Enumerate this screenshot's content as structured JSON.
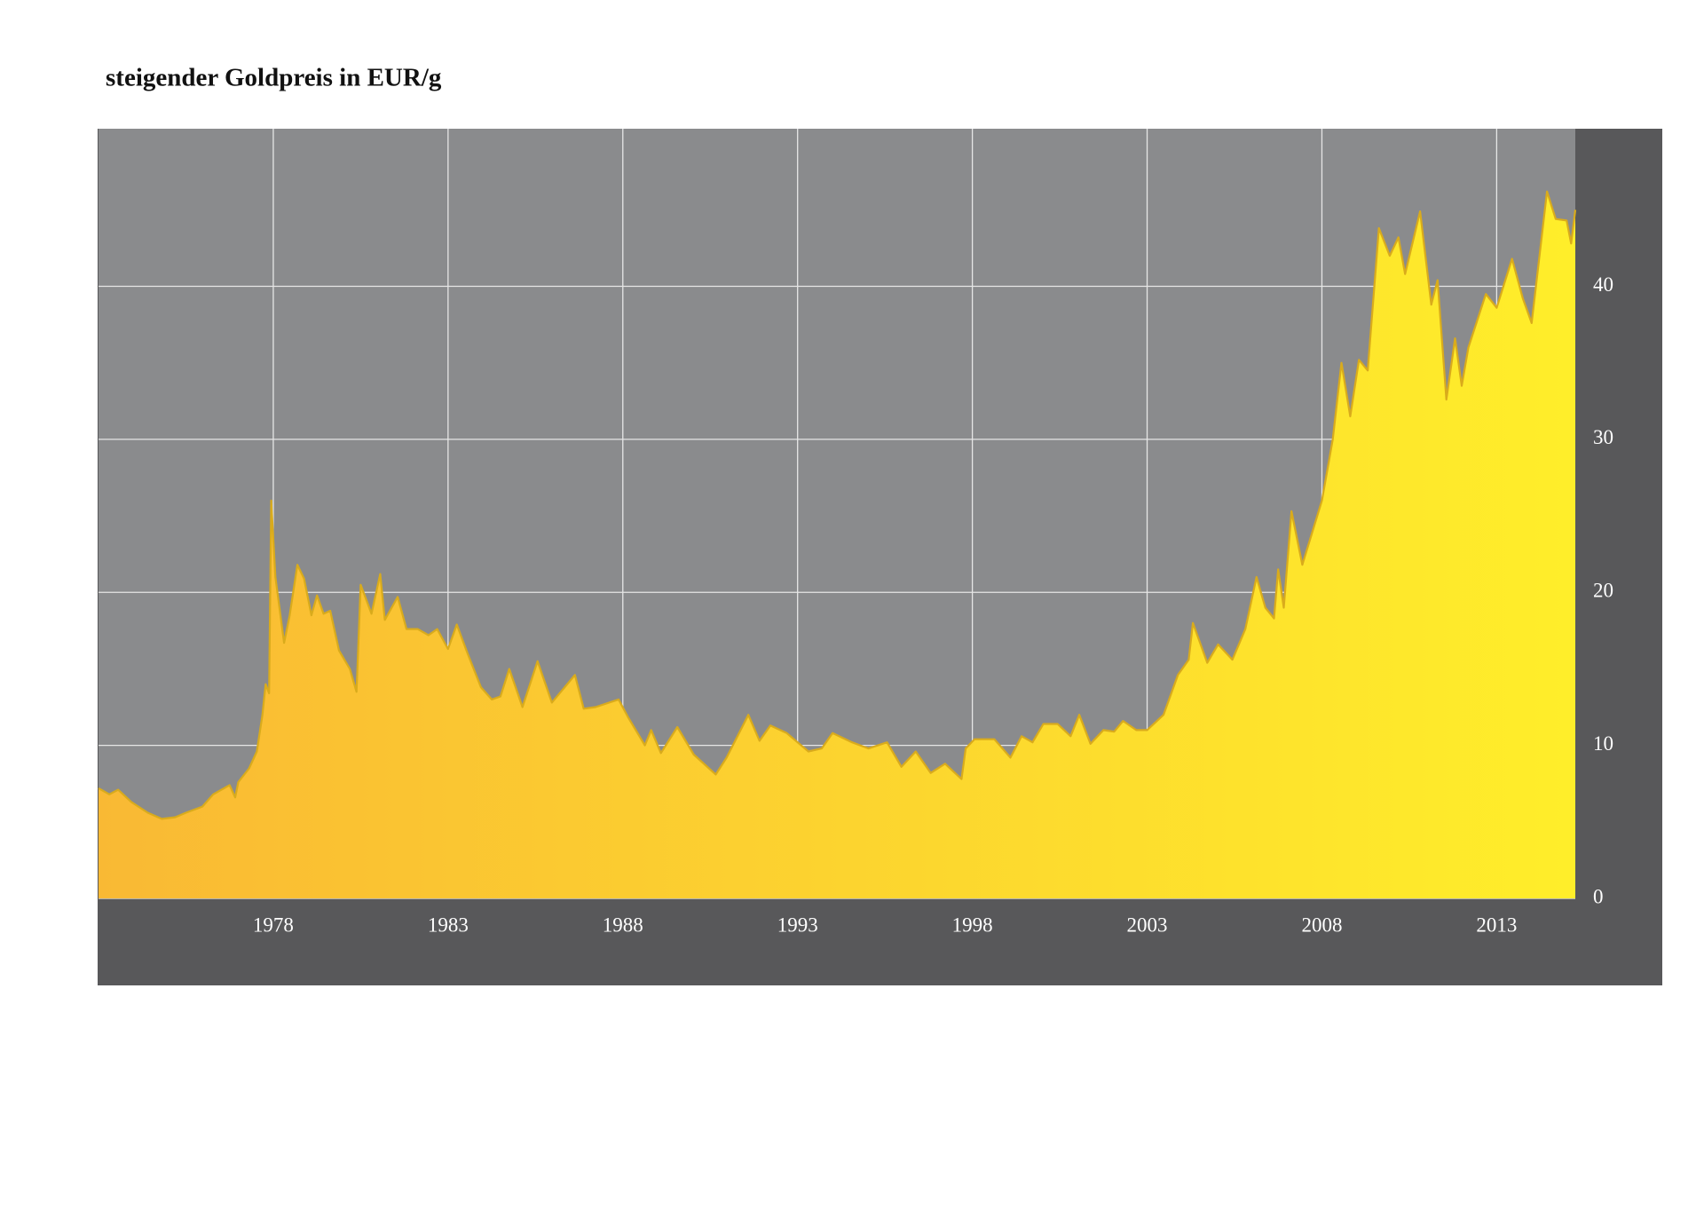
{
  "chart_data": {
    "type": "area",
    "title": "steigender Goldpreis in EUR/g",
    "x": [
      1973.0,
      1973.31,
      1973.56,
      1973.94,
      1974.41,
      1974.81,
      1975.19,
      1975.5,
      1975.97,
      1976.28,
      1976.75,
      1976.91,
      1977.0,
      1977.31,
      1977.53,
      1977.69,
      1977.78,
      1977.88,
      1977.94,
      1978.06,
      1978.31,
      1978.47,
      1978.69,
      1978.88,
      1979.09,
      1979.25,
      1979.44,
      1979.63,
      1979.88,
      1980.19,
      1980.38,
      1980.5,
      1980.81,
      1981.06,
      1981.19,
      1981.56,
      1981.81,
      1982.13,
      1982.44,
      1982.69,
      1983.0,
      1983.25,
      1983.56,
      1983.94,
      1984.25,
      1984.5,
      1984.75,
      1985.13,
      1985.56,
      1985.97,
      1986.63,
      1986.88,
      1987.22,
      1987.88,
      1988.16,
      1988.63,
      1988.81,
      1989.09,
      1989.56,
      1990.03,
      1990.66,
      1990.97,
      1991.59,
      1991.91,
      1992.22,
      1992.69,
      1993.0,
      1993.31,
      1993.69,
      1994.0,
      1994.56,
      1995.03,
      1995.56,
      1995.97,
      1996.38,
      1996.81,
      1997.22,
      1997.69,
      1997.81,
      1998.06,
      1998.63,
      1999.09,
      1999.41,
      1999.72,
      2000.03,
      2000.44,
      2000.81,
      2001.06,
      2001.38,
      2001.75,
      2002.06,
      2002.31,
      2002.69,
      2003.0,
      2003.47,
      2003.88,
      2004.19,
      2004.31,
      2004.72,
      2005.03,
      2005.44,
      2005.81,
      2006.13,
      2006.38,
      2006.63,
      2006.75,
      2006.91,
      2007.13,
      2007.44,
      2008.0,
      2008.31,
      2008.56,
      2008.81,
      2009.06,
      2009.31,
      2009.63,
      2009.94,
      2010.19,
      2010.38,
      2010.81,
      2011.13,
      2011.31,
      2011.56,
      2011.81,
      2012.0,
      2012.19,
      2012.69,
      2013.0,
      2013.44,
      2013.75,
      2014.0,
      2014.44,
      2014.69,
      2015.0,
      2015.13,
      2015.25
    ],
    "values": [
      7.2,
      6.8,
      7.1,
      6.3,
      5.6,
      5.2,
      5.3,
      5.6,
      6.0,
      6.8,
      7.4,
      6.6,
      7.6,
      8.5,
      9.6,
      12.0,
      14.0,
      13.4,
      26.0,
      21.0,
      16.7,
      18.5,
      21.8,
      20.9,
      18.5,
      19.8,
      18.6,
      18.8,
      16.2,
      15.0,
      13.5,
      20.5,
      18.6,
      21.2,
      18.2,
      19.7,
      17.6,
      17.6,
      17.2,
      17.6,
      16.3,
      17.9,
      16.0,
      13.8,
      13.0,
      13.2,
      15.0,
      12.5,
      15.5,
      12.8,
      14.6,
      12.4,
      12.5,
      13.0,
      11.8,
      10.0,
      11.0,
      9.5,
      11.2,
      9.4,
      8.1,
      9.2,
      12.0,
      10.3,
      11.3,
      10.8,
      10.2,
      9.6,
      9.8,
      10.8,
      10.2,
      9.8,
      10.2,
      8.6,
      9.6,
      8.2,
      8.8,
      7.8,
      9.8,
      10.4,
      10.4,
      9.2,
      10.6,
      10.2,
      11.4,
      11.4,
      10.6,
      12.0,
      10.1,
      11.0,
      10.9,
      11.6,
      11.0,
      11.0,
      12.0,
      14.6,
      15.6,
      18.0,
      15.4,
      16.6,
      15.6,
      17.6,
      21.0,
      19.0,
      18.3,
      21.5,
      19.0,
      25.3,
      21.8,
      26.0,
      30.0,
      35.0,
      31.5,
      35.2,
      34.5,
      43.8,
      42.0,
      43.2,
      40.8,
      44.9,
      38.8,
      40.4,
      32.6,
      36.6,
      33.5,
      36.0,
      39.5,
      38.6,
      41.8,
      39.2,
      37.6,
      46.2,
      44.4,
      44.3,
      42.8,
      45.0
    ],
    "xlim": [
      1973,
      2015.25
    ],
    "xticks": [
      1978,
      1983,
      1988,
      1993,
      1998,
      2003,
      2008,
      2013
    ],
    "ylim": [
      0,
      50.3
    ],
    "yticks": [
      0,
      10,
      20,
      30,
      40
    ],
    "grid": true,
    "y_axis_side": "right",
    "color": "#d9ab1c",
    "fill_gradient": [
      "#f9b934",
      "#ffee2a"
    ],
    "plot_background": "#8a8b8d",
    "frame_color": "#58585a"
  }
}
